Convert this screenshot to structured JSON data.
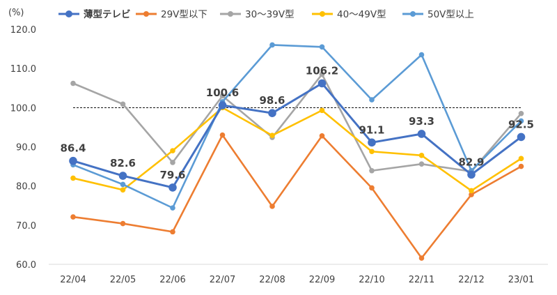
{
  "chart_data": {
    "type": "line",
    "y_unit": "(%)",
    "categories": [
      "22/04",
      "22/05",
      "22/06",
      "22/07",
      "22/08",
      "22/09",
      "22/10",
      "22/11",
      "22/12",
      "23/01"
    ],
    "ylim": [
      60,
      120
    ],
    "yticks": [
      "60.0",
      "70.0",
      "80.0",
      "90.0",
      "100.0",
      "110.0",
      "120.0"
    ],
    "grid": false,
    "legend_position": "top",
    "reference_line": {
      "y": 100,
      "style": "dashed",
      "color": "#000000"
    },
    "series": [
      {
        "name": "29V型以下",
        "color": "#ED7D31",
        "values": [
          72.1,
          70.4,
          68.3,
          93.0,
          74.8,
          92.8,
          79.5,
          61.6,
          77.8,
          85.0
        ]
      },
      {
        "name": "30～39V型",
        "color": "#A5A5A5",
        "values": [
          106.2,
          100.9,
          86.0,
          103.0,
          92.4,
          108.5,
          83.9,
          85.6,
          83.7,
          98.5
        ]
      },
      {
        "name": "40～49V型",
        "color": "#FFC000",
        "values": [
          82.0,
          79.0,
          89.0,
          100.0,
          92.9,
          99.3,
          88.8,
          87.8,
          78.8,
          87.0
        ]
      },
      {
        "name": "50V型以上",
        "color": "#5B9BD5",
        "values": [
          85.4,
          80.4,
          74.4,
          101.5,
          116.0,
          115.5,
          102.0,
          113.5,
          83.9,
          96.6
        ]
      },
      {
        "name": "薄型テレビ",
        "color": "#4472C4",
        "emphasis": true,
        "values": [
          86.4,
          82.6,
          79.6,
          100.6,
          98.6,
          106.2,
          91.1,
          93.3,
          82.9,
          92.5
        ],
        "data_labels": [
          "86.4",
          "82.6",
          "79.6",
          "100.6",
          "98.6",
          "106.2",
          "91.1",
          "93.3",
          "82.9",
          "92.5"
        ]
      }
    ],
    "legend_order": [
      "薄型テレビ",
      "29V型以下",
      "30～39V型",
      "40～49V型",
      "50V型以上"
    ]
  }
}
